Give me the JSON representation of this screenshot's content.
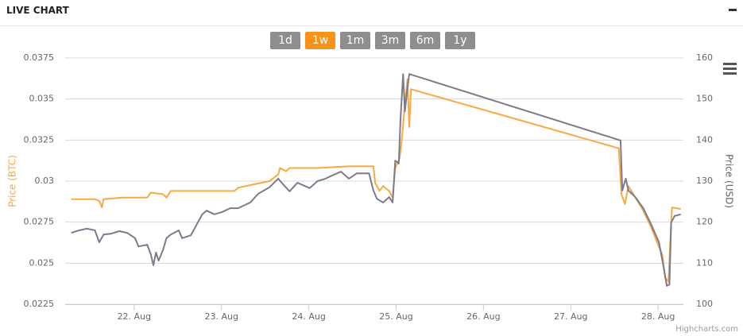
{
  "header": {
    "title": "LIVE CHART"
  },
  "range_buttons": [
    {
      "label": "1d",
      "selected": false
    },
    {
      "label": "1w",
      "selected": true
    },
    {
      "label": "1m",
      "selected": false
    },
    {
      "label": "3m",
      "selected": false
    },
    {
      "label": "6m",
      "selected": false
    },
    {
      "label": "1y",
      "selected": false
    }
  ],
  "chart_data": {
    "type": "line",
    "y_label": "Price (BTC)",
    "y2_label": "Price (USD)",
    "credits": "Highcharts.com",
    "grid": true,
    "xlim": [
      21.21,
      28.29
    ],
    "xticks": [
      {
        "value": 22,
        "label": "22. Aug"
      },
      {
        "value": 23,
        "label": "23. Aug"
      },
      {
        "value": 24,
        "label": "24. Aug"
      },
      {
        "value": 25,
        "label": "25. Aug"
      },
      {
        "value": 26,
        "label": "26. Aug"
      },
      {
        "value": 27,
        "label": "27. Aug"
      },
      {
        "value": 28,
        "label": "28. Aug"
      }
    ],
    "ylim": [
      0.0225,
      0.0375
    ],
    "yticks": [
      0.0225,
      0.025,
      0.0275,
      0.03,
      0.0325,
      0.035,
      0.0375
    ],
    "y2lim": [
      100,
      160
    ],
    "y2ticks": [
      100,
      110,
      120,
      130,
      140,
      150,
      160
    ],
    "series": [
      {
        "color": "#f7a944",
        "axis": "y",
        "x": [
          21.28,
          21.55,
          21.6,
          21.63,
          21.65,
          21.87,
          22.15,
          22.19,
          22.33,
          22.37,
          22.42,
          22.83,
          23.15,
          23.19,
          23.37,
          23.55,
          23.65,
          23.67,
          23.74,
          23.78,
          24.1,
          24.46,
          24.74,
          24.76,
          24.81,
          24.85,
          24.92,
          24.96,
          24.99,
          25.04,
          25.07,
          25.1,
          25.13,
          25.15,
          25.17,
          27.55,
          27.58,
          27.62,
          27.66,
          27.74,
          27.83,
          27.92,
          28.01,
          28.05,
          28.08,
          28.12,
          28.15,
          28.16,
          28.26
        ],
        "values": [
          0.0289,
          0.0289,
          0.0288,
          0.0284,
          0.0289,
          0.029,
          0.029,
          0.0293,
          0.0292,
          0.029,
          0.0294,
          0.0294,
          0.0294,
          0.0296,
          0.0298,
          0.03,
          0.0304,
          0.0308,
          0.0306,
          0.0308,
          0.0308,
          0.0309,
          0.0309,
          0.0299,
          0.0294,
          0.0297,
          0.0294,
          0.029,
          0.0308,
          0.0314,
          0.0328,
          0.0347,
          0.0362,
          0.0333,
          0.0356,
          0.032,
          0.0292,
          0.0286,
          0.0297,
          0.029,
          0.0282,
          0.0272,
          0.026,
          0.0255,
          0.0241,
          0.0239,
          0.0275,
          0.0284,
          0.0283
        ]
      },
      {
        "color": "#7b7b8c",
        "axis": "y2",
        "x": [
          21.28,
          21.37,
          21.46,
          21.55,
          21.6,
          21.65,
          21.74,
          21.83,
          21.92,
          22.01,
          22.05,
          22.15,
          22.19,
          22.22,
          22.25,
          22.28,
          22.33,
          22.37,
          22.42,
          22.51,
          22.55,
          22.65,
          22.78,
          22.83,
          22.92,
          23.01,
          23.1,
          23.19,
          23.33,
          23.42,
          23.55,
          23.65,
          23.69,
          23.78,
          23.87,
          24.01,
          24.1,
          24.19,
          24.28,
          24.37,
          24.46,
          24.55,
          24.69,
          24.74,
          24.78,
          24.85,
          24.92,
          24.96,
          24.99,
          25.03,
          25.05,
          25.08,
          25.1,
          25.13,
          25.15,
          27.57,
          27.59,
          27.63,
          27.66,
          27.74,
          27.83,
          27.92,
          28.01,
          28.07,
          28.1,
          28.13,
          28.15,
          28.19,
          28.26
        ],
        "values": [
          117.4,
          118.0,
          118.4,
          118.0,
          115.1,
          117.0,
          117.2,
          117.8,
          117.4,
          116.1,
          114.1,
          114.5,
          112.2,
          109.5,
          112.6,
          110.6,
          113.2,
          116.1,
          117.0,
          118.0,
          116.1,
          116.8,
          121.9,
          122.8,
          121.9,
          122.5,
          123.4,
          123.4,
          124.8,
          126.9,
          128.5,
          130.6,
          129.6,
          127.5,
          129.6,
          128.3,
          130.0,
          130.6,
          131.5,
          132.3,
          130.6,
          131.9,
          131.9,
          127.7,
          125.7,
          124.8,
          126.1,
          124.8,
          135.0,
          134.3,
          145.1,
          156.1,
          147.0,
          152.8,
          156.1,
          139.9,
          127.7,
          130.6,
          127.7,
          126.1,
          123.4,
          119.5,
          115.1,
          108.3,
          104.5,
          104.8,
          119.9,
          121.5,
          121.9
        ]
      }
    ]
  }
}
